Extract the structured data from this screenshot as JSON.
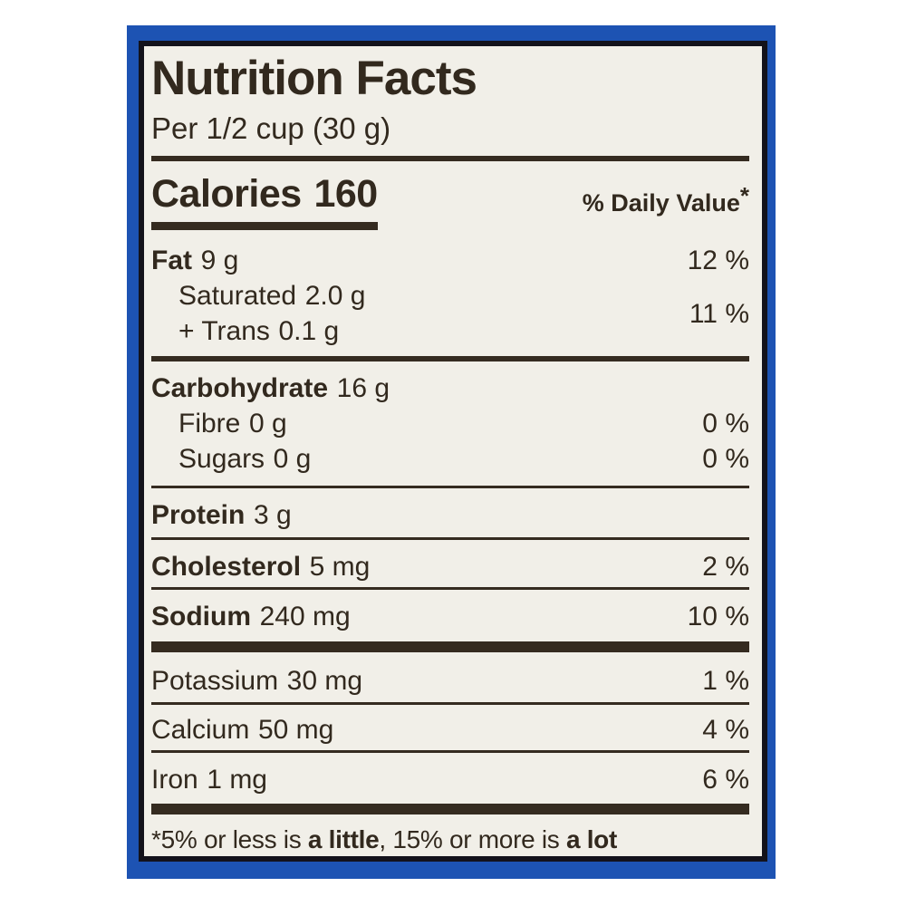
{
  "label": {
    "title": "Nutrition Facts",
    "serving": "Per 1/2 cup (30 g)",
    "calories": {
      "label": "Calories",
      "value": "160"
    },
    "daily_value_header": "% Daily Value",
    "daily_value_footnote_symbol": "*",
    "rows": [
      {
        "name": "Fat",
        "amount": "9 g",
        "dv": "12 %"
      },
      {
        "name": "Saturated",
        "amount": "2.0 g",
        "dv": ""
      },
      {
        "name": "+ Trans",
        "amount": "0.1 g",
        "dv": "11 %"
      },
      {
        "name": "Carbohydrate",
        "amount": "16 g",
        "dv": ""
      },
      {
        "name": "Fibre",
        "amount": "0 g",
        "dv": "0 %"
      },
      {
        "name": "Sugars",
        "amount": "0 g",
        "dv": "0 %"
      },
      {
        "name": "Protein",
        "amount": "3 g",
        "dv": ""
      },
      {
        "name": "Cholesterol",
        "amount": "5 mg",
        "dv": "2 %"
      },
      {
        "name": "Sodium",
        "amount": "240 mg",
        "dv": "10 %"
      },
      {
        "name": "Potassium",
        "amount": "30 mg",
        "dv": "1 %"
      },
      {
        "name": "Calcium",
        "amount": "50 mg",
        "dv": "4 %"
      },
      {
        "name": "Iron",
        "amount": "1 mg",
        "dv": "6 %"
      }
    ],
    "footnote": {
      "pre": "*5% or less is ",
      "bold_low": "a little",
      "mid": ", 15% or more is ",
      "bold_high": "a lot"
    }
  },
  "colors": {
    "frame_blue": "#1d53b3",
    "inner_border": "#13121b",
    "label_background": "#f1efe8",
    "ink": "#32291e",
    "rule": "#352b20"
  }
}
